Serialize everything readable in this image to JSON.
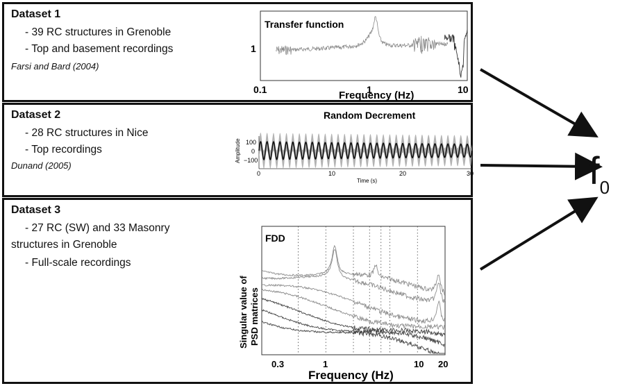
{
  "datasets": [
    {
      "title": "Dataset 1",
      "bullets": [
        "- 39 RC structures in Grenoble",
        "- Top and basement recordings"
      ],
      "reference": "Farsi and Bard (2004)",
      "plot": {
        "title": "Transfer function",
        "xlabel": "Frequency (Hz)",
        "ytick": "1",
        "xticks": [
          "0.1",
          "1",
          "10"
        ]
      }
    },
    {
      "title": "Dataset 2",
      "bullets": [
        "- 28 RC structures in Nice",
        "- Top recordings"
      ],
      "reference": "Dunand (2005)",
      "plot": {
        "title": "Random Decrement",
        "xlabel": "Time (s)",
        "ylabel": "Amplitude",
        "yticks": [
          "100",
          "0",
          "−100"
        ],
        "xticks": [
          "0",
          "10",
          "20",
          "30"
        ]
      }
    },
    {
      "title": "Dataset 3",
      "bullets": [
        "- 27 RC (SW) and 33 Masonry",
        "structures in Grenoble",
        "- Full-scale recordings"
      ],
      "plot": {
        "title": "FDD",
        "xlabel": "Frequency (Hz)",
        "ylabel_line1": "Singular value of",
        "ylabel_line2": "PSD matrices",
        "xticks": [
          "0.3",
          "1",
          "10",
          "20"
        ]
      }
    }
  ],
  "output": {
    "symbol": "f",
    "subscript": "0"
  }
}
